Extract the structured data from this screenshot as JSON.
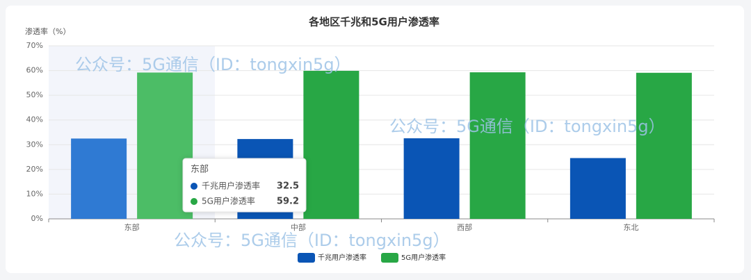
{
  "chart_data": {
    "type": "bar",
    "title": "各地区千兆和5G用户渗透率",
    "y_label": "渗透率（%）",
    "categories": [
      "东部",
      "中部",
      "西部",
      "东北"
    ],
    "series": [
      {
        "name": "千兆用户渗透率",
        "color": "#0a55b5",
        "values": [
          32.5,
          32.3,
          32.6,
          24.6
        ]
      },
      {
        "name": "5G用户渗透率",
        "color": "#28a745",
        "values": [
          59.2,
          59.9,
          59.3,
          59.1
        ]
      }
    ],
    "ylim": [
      0,
      70
    ],
    "yticks": [
      {
        "value": 0,
        "label": "0%"
      },
      {
        "value": 10,
        "label": "10%"
      },
      {
        "value": 20,
        "label": "20%"
      },
      {
        "value": 30,
        "label": "30%"
      },
      {
        "value": 40,
        "label": "40%"
      },
      {
        "value": 50,
        "label": "50%"
      },
      {
        "value": 60,
        "label": "60%"
      },
      {
        "value": 70,
        "label": "70%"
      }
    ],
    "grid": true,
    "legend": "bottom",
    "watermark": "公众号：5G通信（ID：tongxin5g）"
  }
}
